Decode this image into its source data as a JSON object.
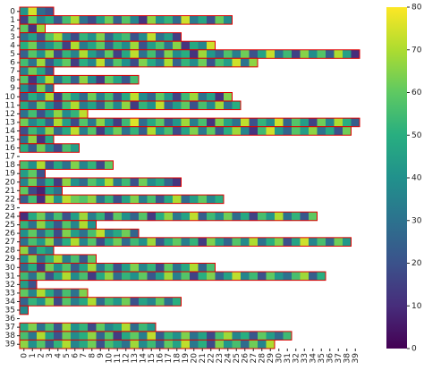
{
  "chart_data": {
    "type": "heatmap",
    "categories": [
      "0",
      "1",
      "2",
      "3",
      "4",
      "5",
      "6",
      "7",
      "8",
      "9",
      "10",
      "11",
      "12",
      "13",
      "14",
      "15",
      "16",
      "17",
      "18",
      "19",
      "20",
      "21",
      "22",
      "23",
      "24",
      "25",
      "26",
      "27",
      "28",
      "29",
      "30",
      "31",
      "32",
      "33",
      "34",
      "35",
      "36",
      "37",
      "38",
      "39"
    ],
    "rows": [
      "0",
      "1",
      "2",
      "3",
      "4",
      "5",
      "6",
      "7",
      "8",
      "9",
      "10",
      "11",
      "12",
      "13",
      "14",
      "15",
      "16",
      "17",
      "18",
      "19",
      "20",
      "21",
      "22",
      "23",
      "24",
      "25",
      "26",
      "27",
      "28",
      "29",
      "30",
      "31",
      "32",
      "33",
      "34",
      "35",
      "36",
      "37",
      "38",
      "39"
    ],
    "values": [
      [
        42,
        75,
        28,
        20
      ],
      [
        15,
        60,
        35,
        48,
        22,
        55,
        70,
        30,
        18,
        44,
        62,
        25,
        58,
        36,
        12,
        66,
        40,
        52,
        28,
        74,
        33,
        47,
        20,
        61,
        38
      ],
      [
        60,
        12,
        68
      ],
      [
        30,
        45,
        22,
        58,
        70,
        35,
        18,
        52,
        40,
        64,
        26,
        48,
        55,
        20,
        38,
        72,
        30,
        44,
        15
      ],
      [
        50,
        62,
        28,
        40,
        55,
        15,
        70,
        33,
        46,
        60,
        24,
        52,
        38,
        68,
        20,
        44,
        57,
        30,
        65,
        12,
        48,
        36,
        74
      ],
      [
        25,
        58,
        40,
        66,
        18,
        52,
        35,
        70,
        44,
        28,
        60,
        15,
        48,
        72,
        30,
        55,
        22,
        64,
        38,
        50,
        12,
        68,
        42,
        26,
        57,
        34,
        62,
        20,
        46,
        73,
        31,
        54,
        16,
        65,
        39,
        58,
        24,
        70,
        45,
        10
      ],
      [
        55,
        30,
        68,
        22,
        45,
        60,
        14,
        50,
        36,
        72,
        28,
        58,
        40,
        18,
        64,
        48,
        32,
        70,
        25,
        52,
        38,
        62,
        20,
        56,
        44,
        74,
        30,
        66
      ],
      [
        35,
        62,
        48,
        20
      ],
      [
        58,
        12,
        44,
        70,
        30,
        52,
        25,
        66,
        38,
        14,
        60,
        46,
        22,
        55
      ],
      [
        40,
        18,
        64,
        30
      ],
      [
        22,
        50,
        36,
        70,
        15,
        58,
        44,
        28,
        62,
        34,
        55,
        20,
        48,
        72,
        38,
        26,
        60,
        42,
        16,
        54,
        68,
        30,
        46,
        12,
        64
      ],
      [
        48,
        28,
        62,
        40,
        18,
        55,
        70,
        33,
        46,
        24,
        58,
        36,
        66,
        14,
        52,
        40,
        72,
        26,
        44,
        60,
        20,
        56,
        38,
        68,
        30,
        50
      ],
      [
        30,
        55,
        20,
        44,
        66,
        38,
        52,
        72
      ],
      [
        62,
        36,
        50,
        24,
        70,
        44,
        18,
        58,
        32,
        66,
        40,
        14,
        54,
        76,
        28,
        48,
        60,
        22,
        42,
        68,
        34,
        56,
        12,
        64,
        46,
        30,
        72,
        20,
        52,
        38,
        74,
        26,
        58,
        44,
        16,
        62,
        36,
        70,
        50,
        24
      ],
      [
        20,
        54,
        38,
        66,
        28,
        48,
        72,
        34,
        58,
        14,
        44,
        62,
        30,
        52,
        24,
        70,
        40,
        56,
        18,
        46,
        64,
        32,
        60,
        22,
        50,
        68,
        36,
        12,
        54,
        74,
        42,
        26,
        58,
        44,
        66,
        30,
        48,
        20,
        62
      ],
      [
        30,
        66,
        12,
        48
      ],
      [
        50,
        24,
        62,
        36,
        18,
        56,
        44
      ],
      [],
      [
        56,
        40,
        70,
        22,
        48,
        30,
        64,
        36,
        52,
        18,
        60
      ],
      [
        44,
        60,
        20
      ],
      [
        36,
        62,
        24,
        50,
        14,
        66,
        40,
        28,
        58,
        46,
        70,
        32,
        54,
        20,
        62,
        38,
        48,
        26,
        12
      ],
      [
        60,
        18,
        8,
        44,
        30
      ],
      [
        24,
        55,
        10,
        68,
        40,
        72,
        62,
        58,
        66,
        30,
        52,
        20,
        46,
        64,
        34,
        56,
        22,
        48,
        70,
        28,
        44,
        60,
        36,
        50
      ],
      [],
      [
        10,
        48,
        62,
        30,
        56,
        20,
        44,
        68,
        34,
        52,
        18,
        60,
        40,
        26,
        58,
        14,
        50,
        66,
        32,
        46,
        72,
        24,
        54,
        38,
        62,
        28,
        48,
        16,
        56,
        42,
        70,
        30,
        52,
        22,
        60
      ],
      [
        52,
        30,
        66,
        44,
        22,
        58,
        36,
        70,
        40
      ],
      [
        40,
        60,
        28,
        52,
        18,
        64,
        44,
        30,
        56,
        72,
        36,
        48,
        62,
        26
      ],
      [
        30,
        56,
        42,
        66,
        24,
        50,
        70,
        36,
        58,
        18,
        46,
        62,
        28,
        54,
        40,
        68,
        22,
        48,
        60,
        34,
        52,
        14,
        64,
        44,
        26,
        58,
        38,
        70,
        30,
        50,
        64,
        20,
        46,
        74,
        36,
        56,
        28,
        62,
        42
      ],
      [
        66,
        24,
        50,
        38
      ],
      [
        40,
        64,
        28,
        52,
        70,
        34,
        56,
        22,
        60
      ],
      [
        28,
        50,
        14,
        62,
        40,
        58,
        24,
        46,
        68,
        32,
        54,
        20,
        44,
        64,
        36,
        52,
        18,
        60,
        30,
        48,
        70,
        26,
        56
      ],
      [
        54,
        30,
        62,
        20,
        46,
        70,
        38,
        56,
        14,
        48,
        66,
        28,
        52,
        40,
        60,
        22,
        44,
        68,
        34,
        58,
        16,
        50,
        64,
        26,
        46,
        72,
        36,
        54,
        20,
        60,
        42,
        30,
        56,
        68,
        24,
        50
      ],
      [
        44,
        20
      ],
      [
        60,
        36,
        70,
        48,
        24,
        56,
        30,
        64
      ],
      [
        26,
        52,
        40,
        66,
        18,
        58,
        34,
        48,
        70,
        28,
        54,
        42,
        62,
        20,
        46,
        36,
        60,
        30,
        50
      ],
      [
        38
      ],
      [],
      [
        48,
        64,
        30,
        56,
        22,
        68,
        40,
        52,
        18,
        60,
        36,
        46,
        70,
        28,
        54,
        42
      ],
      [
        56,
        32,
        70,
        44,
        20,
        62,
        38,
        50,
        66,
        26,
        58,
        14,
        48,
        60,
        34,
        72,
        24,
        52,
        40,
        64,
        30,
        46,
        18,
        56,
        68,
        36,
        50,
        22,
        60,
        44,
        28,
        54
      ],
      [
        66,
        40,
        58,
        24,
        52,
        70,
        36,
        48,
        62,
        20,
        56,
        44,
        30,
        68,
        38,
        54,
        26,
        60,
        46,
        72,
        32,
        50,
        18,
        64,
        42,
        56,
        28,
        62,
        36,
        70
      ]
    ],
    "colormap": "viridis",
    "vlim": [
      0,
      80
    ],
    "cticks": [
      0,
      10,
      20,
      30,
      40,
      50,
      60,
      70,
      80
    ],
    "outline_color": "#e00000"
  }
}
